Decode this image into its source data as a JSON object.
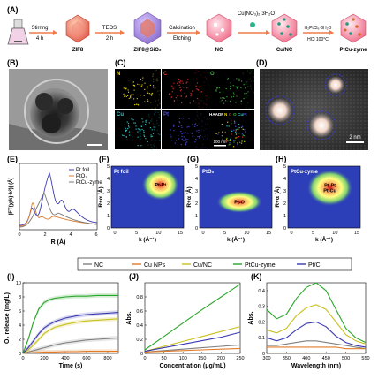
{
  "panels": {
    "A": {
      "label": "(A)",
      "stages": [
        "ZIF8",
        "ZIF8@SiO₂",
        "NC",
        "Cu/NC",
        "PtCu-zyme"
      ],
      "arrows": [
        {
          "top": "Stirring",
          "bottom": "4 h"
        },
        {
          "top": "TEOS",
          "bottom": "2 h"
        },
        {
          "top": "Calcination",
          "bottom": "Etching"
        },
        {
          "top": "Cu(NO₃)₂·3H₂O",
          "bottom": ""
        },
        {
          "top": "H₂PtCl₆·6H₂O",
          "bottom": "HCl  100°C"
        }
      ]
    },
    "B": {
      "label": "(B)"
    },
    "C": {
      "label": "(C)",
      "maps": [
        {
          "el": "N",
          "color": "#e6d200"
        },
        {
          "el": "C",
          "color": "#e0302a"
        },
        {
          "el": "O",
          "color": "#3fa83f"
        },
        {
          "el": "Cu",
          "color": "#2fc9c9"
        },
        {
          "el": "Pt",
          "color": "#4a4ad8"
        }
      ],
      "overlay": [
        "HAADF",
        "N",
        "C",
        "O",
        "Cu",
        "Pt"
      ],
      "scale": "100 nm"
    },
    "D": {
      "label": "(D)",
      "scale": "2 nm"
    },
    "E": {
      "label": "(E)",
      "ylabel": "|FT(χ(k)·k²)| (Å)",
      "xlabel": "R (Å)",
      "xticks": [
        "0",
        "2",
        "4",
        "6"
      ],
      "legend": [
        "Pt foil",
        "PtO₂",
        "PtCu-zyme"
      ]
    },
    "F": {
      "label": "(F)",
      "tag": "Pt foil",
      "peak": "Pt-Pt",
      "ylabel": "R+α (Å)",
      "xlabel": "k (Å⁻¹)"
    },
    "G": {
      "label": "(G)",
      "tag": "PtO₂",
      "peak": "Pt-O",
      "ylabel": "R+α (Å)",
      "xlabel": "k (Å⁻¹)"
    },
    "H": {
      "label": "(H)",
      "tag": "PtCu-zyme",
      "peak": "Pt-Pt\nPt-Cu",
      "ylabel": "R+α (Å)",
      "xlabel": "k (Å⁻¹)"
    },
    "contour_xticks": [
      "0",
      "5",
      "10",
      "15"
    ],
    "contour_yticks": [
      "0",
      "1",
      "2",
      "3",
      "4",
      "5"
    ]
  },
  "legend": [
    {
      "name": "NC",
      "color": "#808080"
    },
    {
      "name": "Cu NPs",
      "color": "#e07b2a"
    },
    {
      "name": "Cu/NC",
      "color": "#c8c020"
    },
    {
      "name": "PtCu-zyme",
      "color": "#2aa52a"
    },
    {
      "name": "Pt/C",
      "color": "#3a3ab0"
    }
  ],
  "chart_data": [
    {
      "id": "I",
      "type": "line",
      "title": "(I)",
      "xlabel": "Time (s)",
      "ylabel": "O₂ release (mg/L)",
      "xlim": [
        0,
        900
      ],
      "ylim": [
        0,
        10
      ],
      "xticks": [
        0,
        200,
        400,
        600,
        800
      ],
      "yticks": [
        0,
        2,
        4,
        6,
        8,
        10
      ],
      "x": [
        0,
        50,
        100,
        150,
        200,
        250,
        300,
        400,
        500,
        600,
        700,
        800,
        900
      ],
      "series": [
        {
          "name": "NC",
          "values": [
            0,
            0.2,
            0.4,
            0.6,
            0.8,
            1.0,
            1.2,
            1.5,
            1.7,
            1.9,
            2.0,
            2.1,
            2.2
          ]
        },
        {
          "name": "Cu NPs",
          "values": [
            0,
            0.05,
            0.1,
            0.15,
            0.2,
            0.2,
            0.2,
            0.25,
            0.25,
            0.3,
            0.3,
            0.3,
            0.3
          ]
        },
        {
          "name": "Cu/NC",
          "values": [
            0,
            0.5,
            1.2,
            2.0,
            2.8,
            3.3,
            3.7,
            4.1,
            4.4,
            4.6,
            4.7,
            4.8,
            4.9
          ]
        },
        {
          "name": "PtCu-zyme",
          "values": [
            0,
            2.0,
            4.5,
            6.3,
            7.2,
            7.6,
            7.8,
            8.0,
            8.1,
            8.1,
            8.2,
            8.2,
            8.2
          ]
        },
        {
          "name": "Pt/C",
          "values": [
            0,
            0.8,
            1.8,
            2.8,
            3.6,
            4.1,
            4.5,
            5.0,
            5.3,
            5.5,
            5.6,
            5.7,
            5.8
          ]
        }
      ]
    },
    {
      "id": "J",
      "type": "line",
      "title": "(J)",
      "xlabel": "Concentration (μg/mL)",
      "ylabel": "Abs.",
      "xlim": [
        0,
        250
      ],
      "ylim": [
        0,
        1.0
      ],
      "xticks": [
        0,
        50,
        100,
        150,
        200,
        250
      ],
      "yticks": [
        0,
        0.2,
        0.4,
        0.6,
        0.8
      ],
      "x": [
        0,
        50,
        100,
        150,
        200,
        250
      ],
      "series": [
        {
          "name": "NC",
          "values": [
            0.02,
            0.04,
            0.06,
            0.08,
            0.1,
            0.12
          ]
        },
        {
          "name": "Cu NPs",
          "values": [
            0.02,
            0.03,
            0.04,
            0.05,
            0.06,
            0.07
          ]
        },
        {
          "name": "Cu/NC",
          "values": [
            0.03,
            0.1,
            0.17,
            0.24,
            0.31,
            0.38
          ]
        },
        {
          "name": "PtCu-zyme",
          "values": [
            0.05,
            0.24,
            0.43,
            0.62,
            0.8,
            0.98
          ]
        },
        {
          "name": "Pt/C",
          "values": [
            0.03,
            0.08,
            0.13,
            0.18,
            0.23,
            0.3
          ]
        }
      ]
    },
    {
      "id": "K",
      "type": "line",
      "title": "(K)",
      "xlabel": "Wavelength (nm)",
      "ylabel": "Abs.",
      "xlim": [
        300,
        550
      ],
      "ylim": [
        0,
        0.45
      ],
      "xticks": [
        300,
        350,
        400,
        450,
        500,
        550
      ],
      "yticks": [
        0,
        0.1,
        0.2,
        0.3,
        0.4
      ],
      "x": [
        300,
        325,
        350,
        375,
        400,
        425,
        450,
        475,
        500,
        525,
        550
      ],
      "series": [
        {
          "name": "NC",
          "values": [
            0.05,
            0.05,
            0.06,
            0.07,
            0.08,
            0.08,
            0.07,
            0.06,
            0.05,
            0.04,
            0.03
          ]
        },
        {
          "name": "Cu NPs",
          "values": [
            0.04,
            0.04,
            0.04,
            0.04,
            0.04,
            0.04,
            0.04,
            0.04,
            0.03,
            0.03,
            0.03
          ]
        },
        {
          "name": "Cu/NC",
          "values": [
            0.15,
            0.13,
            0.16,
            0.24,
            0.29,
            0.31,
            0.28,
            0.2,
            0.12,
            0.08,
            0.06
          ]
        },
        {
          "name": "PtCu-zyme",
          "values": [
            0.28,
            0.22,
            0.25,
            0.35,
            0.42,
            0.45,
            0.4,
            0.28,
            0.16,
            0.1,
            0.07
          ]
        },
        {
          "name": "Pt/C",
          "values": [
            0.1,
            0.08,
            0.1,
            0.15,
            0.19,
            0.2,
            0.17,
            0.11,
            0.07,
            0.05,
            0.04
          ]
        }
      ]
    }
  ]
}
